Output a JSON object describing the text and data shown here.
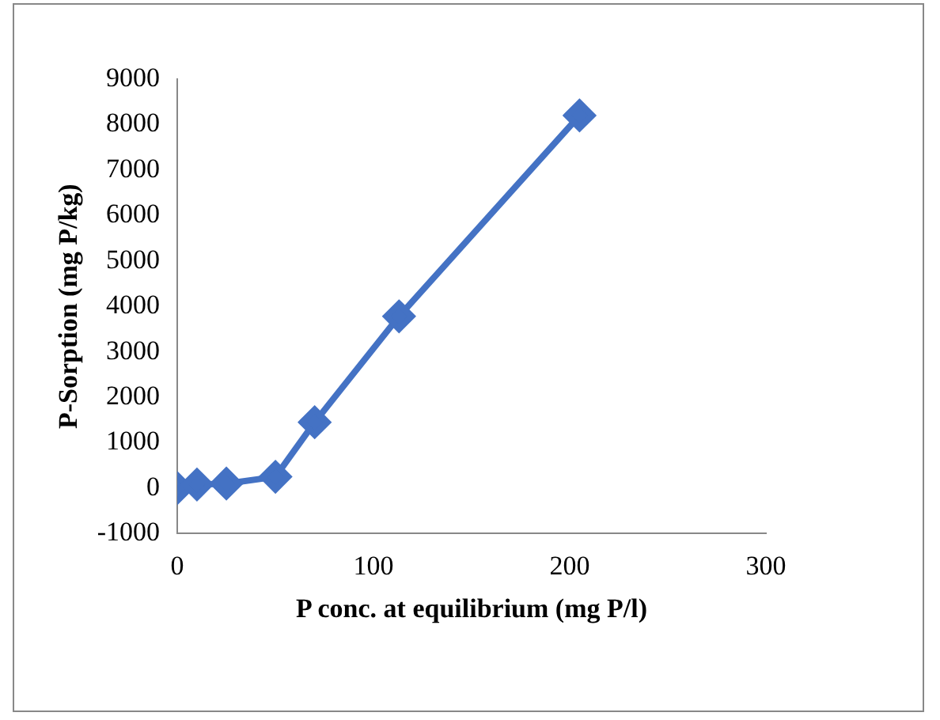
{
  "chart_data": {
    "type": "line",
    "xlabel": "P conc. at equilibrium (mg P/l)",
    "ylabel": "P-Sorption (mg P/kg)",
    "series": [
      {
        "color": "#4472c4",
        "x": [
          0,
          10,
          25,
          50,
          70,
          113,
          205
        ],
        "values": [
          0,
          80,
          100,
          250,
          1450,
          3780,
          8200
        ]
      }
    ],
    "xlim": [
      0,
      300
    ],
    "xticks": [
      0,
      100,
      200,
      300
    ],
    "ylim": [
      -1000,
      9000
    ],
    "yticks": [
      -1000,
      0,
      1000,
      2000,
      3000,
      4000,
      5000,
      6000,
      7000,
      8000,
      9000
    ],
    "grid": false,
    "legend": false,
    "marker": "diamond",
    "line_style": "solid"
  }
}
